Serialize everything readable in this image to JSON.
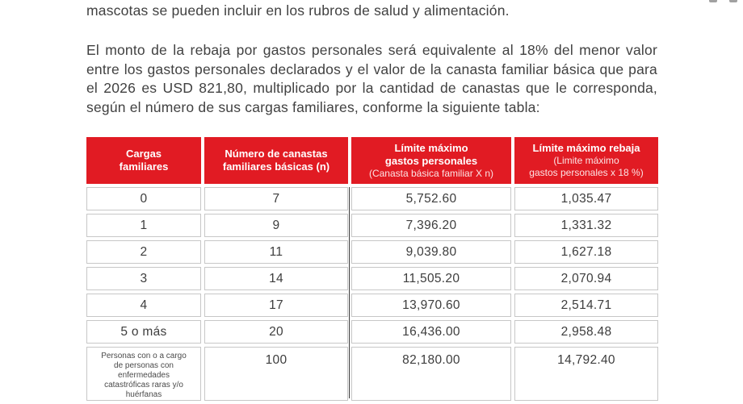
{
  "document": {
    "intro_line": "mascotas se pueden incluir en los rubros de salud y alimentación.",
    "paragraph": "El monto de la rebaja por gastos personales será equivalente al 18% del menor valor entre los gastos personales declarados y el valor de la canasta familiar básica que para el 2026 es USD 821,80, multiplicado por la cantidad de canastas que le corresponda, según el número de sus cargas familiares, conforme la siguiente tabla:"
  },
  "table": {
    "header_bg": "#e11b23",
    "columns": [
      {
        "title": "Cargas\nfamiliares",
        "subtitle": ""
      },
      {
        "title": "Número de canastas\nfamiliares básicas (n)",
        "subtitle": ""
      },
      {
        "title": "Límite máximo\ngastos personales",
        "subtitle": "(Canasta básica familiar X n)"
      },
      {
        "title": "Límite máximo rebaja",
        "subtitle": "(Limite máximo\ngastos personales x 18 %)"
      }
    ],
    "rows": [
      {
        "cargas": "0",
        "canastas": "7",
        "limite_gastos": "5,752.60",
        "limite_rebaja": "1,035.47"
      },
      {
        "cargas": "1",
        "canastas": "9",
        "limite_gastos": "7,396.20",
        "limite_rebaja": "1,331.32"
      },
      {
        "cargas": "2",
        "canastas": "11",
        "limite_gastos": "9,039.80",
        "limite_rebaja": "1,627.18"
      },
      {
        "cargas": "3",
        "canastas": "14",
        "limite_gastos": "11,505.20",
        "limite_rebaja": "2,070.94"
      },
      {
        "cargas": "4",
        "canastas": "17",
        "limite_gastos": "13,970.60",
        "limite_rebaja": "2,514.71"
      },
      {
        "cargas": "5 o más",
        "canastas": "20",
        "limite_gastos": "16,436.00",
        "limite_rebaja": "2,958.48"
      },
      {
        "cargas": "Personas con o a cargo de personas con enfermedades catastróficas raras y/o huérfanas",
        "canastas": "100",
        "limite_gastos": "82,180.00",
        "limite_rebaja": "14,792.40",
        "small": true
      }
    ]
  }
}
